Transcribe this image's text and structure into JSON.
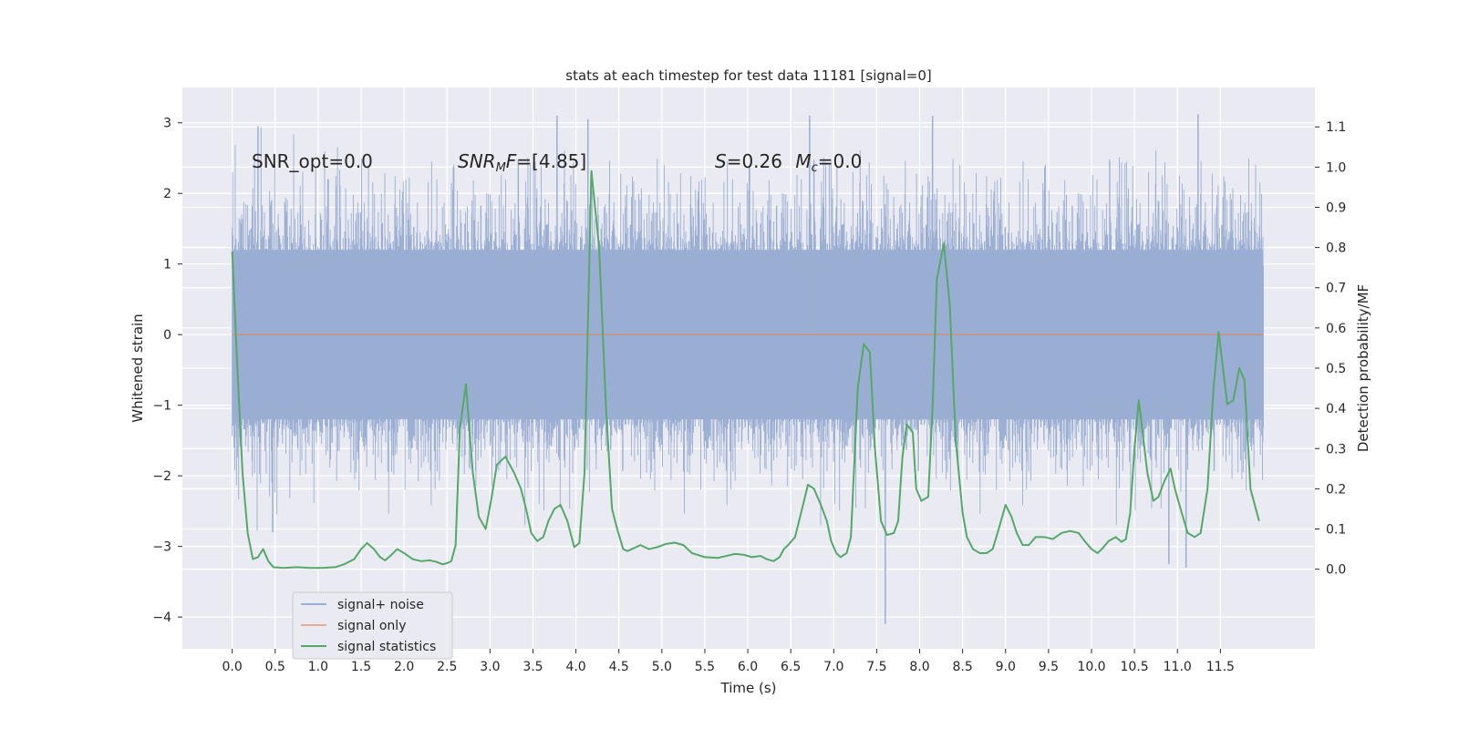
{
  "chart_data": {
    "type": "line",
    "title": "stats at each timestep for test data 11181 [signal=0]",
    "xlabel": "Time (s)",
    "ylabel": "Whitened strain",
    "y2label": "Detection probability/MF",
    "xlim": [
      -0.58,
      12.6
    ],
    "ylim": [
      -4.45,
      3.5
    ],
    "y2lim": [
      -0.198,
      1.198
    ],
    "grid": true,
    "legend_position": "lower-left",
    "x_ticks": [
      0.0,
      0.5,
      1.0,
      1.5,
      2.0,
      2.5,
      3.0,
      3.5,
      4.0,
      4.5,
      5.0,
      5.5,
      6.0,
      6.5,
      7.0,
      7.5,
      8.0,
      8.5,
      9.0,
      9.5,
      10.0,
      10.5,
      11.0,
      11.5
    ],
    "x_tick_labels": [
      "0.0",
      "0.5",
      "1.0",
      "1.5",
      "2.0",
      "2.5",
      "3.0",
      "3.5",
      "4.0",
      "4.5",
      "5.0",
      "5.5",
      "6.0",
      "6.5",
      "7.0",
      "7.5",
      "8.0",
      "8.5",
      "9.0",
      "9.5",
      "10.0",
      "10.5",
      "11.0",
      "11.5"
    ],
    "y_ticks": [
      3,
      2,
      1,
      0,
      -1,
      -2,
      -3,
      -4
    ],
    "y_tick_labels": [
      "3",
      "2",
      "1",
      "0",
      "−1",
      "−2",
      "−3",
      "−4"
    ],
    "y2_ticks": [
      1.1,
      1.0,
      0.9,
      0.8,
      0.7,
      0.6,
      0.5,
      0.4,
      0.3,
      0.2,
      0.1,
      0.0
    ],
    "y2_tick_labels": [
      "1.1",
      "1.0",
      "0.9",
      "0.8",
      "0.7",
      "0.6",
      "0.5",
      "0.4",
      "0.3",
      "0.2",
      "0.1",
      "0.0"
    ],
    "annotations": [
      {
        "text": "SNR_opt=0.0"
      },
      {
        "text": "SNR_MF=[4.85]"
      },
      {
        "text": "S=0.26   M_c=0.0"
      }
    ],
    "series": [
      {
        "name": "signal+ noise",
        "axis": "left",
        "color": "#9aaed3",
        "x_range": [
          0.0,
          12.0
        ],
        "typical_band": [
          -1.7,
          1.7
        ],
        "spikes": [
          [
            0.3,
            2.95
          ],
          [
            3.78,
            3.1
          ],
          [
            4.14,
            3.05
          ],
          [
            6.72,
            3.1
          ],
          [
            8.15,
            3.1
          ],
          [
            11.24,
            3.12
          ],
          [
            0.47,
            -2.8
          ],
          [
            7.6,
            -4.1
          ],
          [
            10.9,
            -3.25
          ],
          [
            11.1,
            -3.3
          ]
        ]
      },
      {
        "name": "signal only",
        "axis": "left",
        "color": "#dd8452",
        "x": [
          0.0,
          12.0
        ],
        "y": [
          0.0,
          0.0
        ]
      },
      {
        "name": "signal statistics",
        "axis": "right",
        "color": "#55a868",
        "x": [
          0.0,
          0.06,
          0.12,
          0.18,
          0.24,
          0.3,
          0.36,
          0.42,
          0.48,
          0.6,
          0.75,
          0.9,
          1.05,
          1.2,
          1.3,
          1.42,
          1.5,
          1.57,
          1.65,
          1.72,
          1.78,
          1.85,
          1.92,
          2.0,
          2.1,
          2.2,
          2.3,
          2.38,
          2.45,
          2.5,
          2.55,
          2.6,
          2.65,
          2.72,
          2.8,
          2.87,
          2.95,
          3.02,
          3.08,
          3.18,
          3.28,
          3.36,
          3.42,
          3.48,
          3.55,
          3.62,
          3.68,
          3.75,
          3.82,
          3.9,
          3.98,
          4.04,
          4.1,
          4.18,
          4.27,
          4.35,
          4.42,
          4.48,
          4.55,
          4.6,
          4.65,
          4.75,
          4.85,
          4.95,
          5.05,
          5.15,
          5.25,
          5.35,
          5.5,
          5.65,
          5.75,
          5.85,
          5.95,
          6.05,
          6.15,
          6.22,
          6.3,
          6.37,
          6.42,
          6.47,
          6.55,
          6.62,
          6.7,
          6.77,
          6.85,
          6.92,
          6.97,
          7.03,
          7.08,
          7.15,
          7.2,
          7.28,
          7.35,
          7.42,
          7.48,
          7.55,
          7.62,
          7.7,
          7.75,
          7.8,
          7.85,
          7.92,
          7.96,
          8.02,
          8.1,
          8.15,
          8.2,
          8.28,
          8.35,
          8.42,
          8.5,
          8.55,
          8.62,
          8.7,
          8.78,
          8.85,
          8.92,
          9.0,
          9.07,
          9.13,
          9.2,
          9.27,
          9.35,
          9.45,
          9.55,
          9.65,
          9.75,
          9.85,
          9.92,
          10.0,
          10.07,
          10.12,
          10.2,
          10.28,
          10.35,
          10.4,
          10.45,
          10.5,
          10.55,
          10.6,
          10.65,
          10.72,
          10.78,
          10.85,
          10.92,
          10.97,
          11.05,
          11.12,
          11.2,
          11.27,
          11.35,
          11.42,
          11.48,
          11.53,
          11.58,
          11.65,
          11.72,
          11.78,
          11.85,
          11.95
        ],
        "y": [
          0.79,
          0.5,
          0.24,
          0.09,
          0.025,
          0.03,
          0.05,
          0.02,
          0.005,
          0.003,
          0.005,
          0.003,
          0.003,
          0.005,
          0.012,
          0.025,
          0.05,
          0.065,
          0.05,
          0.03,
          0.022,
          0.035,
          0.05,
          0.04,
          0.025,
          0.02,
          0.022,
          0.018,
          0.012,
          0.015,
          0.02,
          0.06,
          0.35,
          0.46,
          0.24,
          0.13,
          0.1,
          0.18,
          0.26,
          0.28,
          0.24,
          0.2,
          0.15,
          0.09,
          0.07,
          0.08,
          0.12,
          0.15,
          0.16,
          0.12,
          0.055,
          0.065,
          0.24,
          0.99,
          0.8,
          0.4,
          0.15,
          0.1,
          0.05,
          0.045,
          0.05,
          0.06,
          0.05,
          0.055,
          0.063,
          0.066,
          0.06,
          0.04,
          0.03,
          0.028,
          0.033,
          0.038,
          0.036,
          0.03,
          0.033,
          0.025,
          0.02,
          0.03,
          0.05,
          0.06,
          0.08,
          0.14,
          0.21,
          0.2,
          0.16,
          0.12,
          0.07,
          0.04,
          0.03,
          0.04,
          0.08,
          0.45,
          0.56,
          0.54,
          0.3,
          0.12,
          0.085,
          0.09,
          0.12,
          0.28,
          0.36,
          0.34,
          0.2,
          0.17,
          0.18,
          0.4,
          0.72,
          0.81,
          0.66,
          0.32,
          0.14,
          0.08,
          0.05,
          0.04,
          0.04,
          0.05,
          0.1,
          0.16,
          0.13,
          0.09,
          0.06,
          0.06,
          0.08,
          0.08,
          0.075,
          0.09,
          0.095,
          0.09,
          0.07,
          0.05,
          0.04,
          0.05,
          0.07,
          0.08,
          0.068,
          0.075,
          0.14,
          0.3,
          0.42,
          0.33,
          0.24,
          0.17,
          0.18,
          0.22,
          0.25,
          0.2,
          0.14,
          0.09,
          0.08,
          0.09,
          0.2,
          0.45,
          0.59,
          0.5,
          0.41,
          0.42,
          0.5,
          0.47,
          0.2,
          0.12
        ]
      }
    ]
  }
}
